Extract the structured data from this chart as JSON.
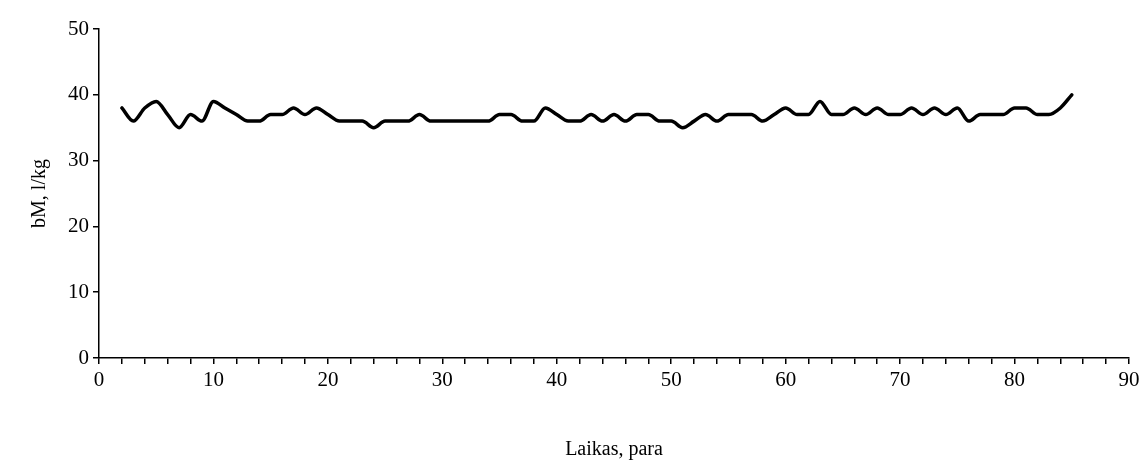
{
  "chart_data": {
    "type": "line",
    "xlabel": "Laikas, para",
    "ylabel": "bM, l/kg",
    "x": [
      2,
      3,
      4,
      5,
      6,
      7,
      8,
      9,
      10,
      11,
      12,
      13,
      14,
      15,
      16,
      17,
      18,
      19,
      20,
      21,
      22,
      23,
      24,
      25,
      26,
      27,
      28,
      29,
      30,
      31,
      32,
      33,
      34,
      35,
      36,
      37,
      38,
      39,
      40,
      41,
      42,
      43,
      44,
      45,
      46,
      47,
      48,
      49,
      50,
      51,
      52,
      53,
      54,
      55,
      56,
      57,
      58,
      59,
      60,
      61,
      62,
      63,
      64,
      65,
      66,
      67,
      68,
      69,
      70,
      71,
      72,
      73,
      74,
      75,
      76,
      77,
      78,
      79,
      80,
      81,
      82,
      83,
      84,
      85
    ],
    "series": [
      {
        "color": "#000000",
        "values": [
          38,
          36,
          38,
          39,
          37,
          35,
          37,
          36,
          39,
          38,
          37,
          36,
          36,
          37,
          37,
          38,
          37,
          38,
          37,
          36,
          36,
          36,
          35,
          36,
          36,
          36,
          37,
          36,
          36,
          36,
          36,
          36,
          36,
          37,
          37,
          36,
          36,
          38,
          37,
          36,
          36,
          37,
          36,
          37,
          36,
          37,
          37,
          36,
          36,
          35,
          36,
          37,
          36,
          37,
          37,
          37,
          36,
          37,
          38,
          37,
          37,
          39,
          37,
          37,
          38,
          37,
          38,
          37,
          37,
          38,
          37,
          38,
          37,
          38,
          36,
          37,
          37,
          37,
          38,
          38,
          37,
          37,
          38,
          40
        ]
      }
    ],
    "xlim": [
      0,
      90
    ],
    "xticks": [
      0,
      {
        "value": 2,
        "label": null
      },
      {
        "value": 4,
        "label": null
      },
      {
        "value": 6,
        "label": null
      },
      {
        "value": 8,
        "label": null
      },
      10,
      {
        "value": 12,
        "label": null
      },
      {
        "value": 14,
        "label": null
      },
      {
        "value": 16,
        "label": null
      },
      {
        "value": 18,
        "label": null
      },
      20,
      {
        "value": 22,
        "label": null
      },
      {
        "value": 24,
        "label": null
      },
      {
        "value": 26,
        "label": null
      },
      {
        "value": 28,
        "label": null
      },
      30,
      {
        "value": 32,
        "label": null
      },
      {
        "value": 34,
        "label": null
      },
      {
        "value": 36,
        "label": null
      },
      {
        "value": 38,
        "label": null
      },
      40,
      {
        "value": 42,
        "label": null
      },
      {
        "value": 44,
        "label": null
      },
      {
        "value": 46,
        "label": null
      },
      {
        "value": 48,
        "label": null
      },
      50,
      {
        "value": 52,
        "label": null
      },
      {
        "value": 54,
        "label": null
      },
      {
        "value": 56,
        "label": null
      },
      {
        "value": 58,
        "label": null
      },
      60,
      {
        "value": 62,
        "label": null
      },
      {
        "value": 64,
        "label": null
      },
      {
        "value": 66,
        "label": null
      },
      {
        "value": 68,
        "label": null
      },
      70,
      {
        "value": 72,
        "label": null
      },
      {
        "value": 74,
        "label": null
      },
      {
        "value": 76,
        "label": null
      },
      {
        "value": 78,
        "label": null
      },
      80,
      {
        "value": 82,
        "label": null
      },
      {
        "value": 84,
        "label": null
      },
      {
        "value": 86,
        "label": null
      },
      {
        "value": 88,
        "label": null
      },
      90
    ],
    "ylim": [
      0,
      50
    ],
    "yticks": [
      0,
      10,
      20,
      30,
      40,
      50
    ],
    "grid": false,
    "legend": false,
    "marker": "none",
    "line_style": "solid"
  }
}
